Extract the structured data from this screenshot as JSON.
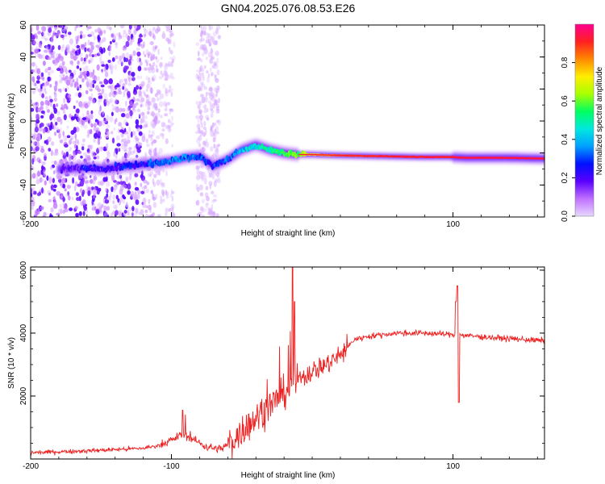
{
  "chart_data": [
    {
      "type": "heatmap",
      "title": "GN04.2025.076.08.53.E26",
      "xlabel": "Height of straight line (km)",
      "ylabel": "Frequency (Hz)",
      "xlim": [
        -200,
        165
      ],
      "ylim": [
        -60,
        60
      ],
      "x_ticks": [
        -200,
        -100,
        100
      ],
      "x_tick_labels": [
        "-200",
        "-100",
        "100"
      ],
      "y_ticks": [
        -60,
        -40,
        -20,
        0,
        20,
        40,
        60
      ],
      "y_tick_labels": [
        "-60",
        "-40",
        "-20",
        "0",
        "20",
        "40",
        "60"
      ],
      "colorbar": {
        "label": "Normalized spectral amplitude",
        "range": [
          0,
          1
        ],
        "ticks": [
          0.0,
          0.2,
          0.4,
          0.6,
          0.8
        ],
        "tick_labels": [
          "0.0",
          "0.2",
          "0.4",
          "0.6",
          "0.8"
        ],
        "colors": [
          "#e8d8ff",
          "#c070ff",
          "#5a00ff",
          "#0010ff",
          "#00a0ff",
          "#00e8e0",
          "#00ff60",
          "#a8ff00",
          "#ffee00",
          "#ff8800",
          "#ff2020",
          "#ff0090"
        ]
      },
      "signal_track": {
        "x": [
          -175,
          -160,
          -150,
          -140,
          -130,
          -120,
          -110,
          -100,
          -90,
          -80,
          -70,
          -60,
          -50,
          -40,
          -30,
          -20,
          -10,
          0,
          20,
          50,
          80,
          97,
          110,
          140,
          165
        ],
        "y": [
          -30,
          -29,
          -30,
          -29,
          -28,
          -27,
          -26,
          -25,
          -23,
          -22,
          -28,
          -24,
          -18,
          -15,
          -18,
          -20,
          -21,
          -21,
          -21.5,
          -22,
          -22.5,
          -22.5,
          -23,
          -23,
          -23.5
        ],
        "amplitude": [
          0.15,
          0.2,
          0.2,
          0.22,
          0.25,
          0.25,
          0.3,
          0.35,
          0.35,
          0.3,
          0.25,
          0.3,
          0.4,
          0.45,
          0.5,
          0.55,
          0.6,
          0.75,
          0.85,
          0.9,
          0.92,
          0.9,
          0.95,
          0.95,
          0.95
        ]
      }
    },
    {
      "type": "line",
      "xlabel": "Height of straight line (km)",
      "ylabel": "SNR (10 * v/v)",
      "xlim": [
        -200,
        165
      ],
      "ylim": [
        0,
        6100
      ],
      "x_ticks": [
        -200,
        -100,
        100
      ],
      "x_tick_labels": [
        "-200",
        "-100",
        "100"
      ],
      "y_ticks": [
        2000,
        4000,
        6000
      ],
      "y_tick_labels": [
        "2000",
        "4000",
        "6000"
      ],
      "series": [
        {
          "color": "#ee2020",
          "x": [
            -200,
            -180,
            -160,
            -140,
            -120,
            -110,
            -100,
            -92,
            -85,
            -75,
            -65,
            -55,
            -50,
            -40,
            -30,
            -20,
            -10,
            0,
            10,
            20,
            30,
            40,
            60,
            80,
            100,
            110,
            130,
            150,
            165
          ],
          "y": [
            200,
            230,
            260,
            300,
            340,
            420,
            600,
            800,
            640,
            380,
            320,
            600,
            900,
            1300,
            1700,
            2100,
            2500,
            2800,
            3000,
            3300,
            3800,
            3900,
            4000,
            4000,
            3950,
            3920,
            3850,
            3800,
            3750
          ]
        }
      ]
    }
  ]
}
